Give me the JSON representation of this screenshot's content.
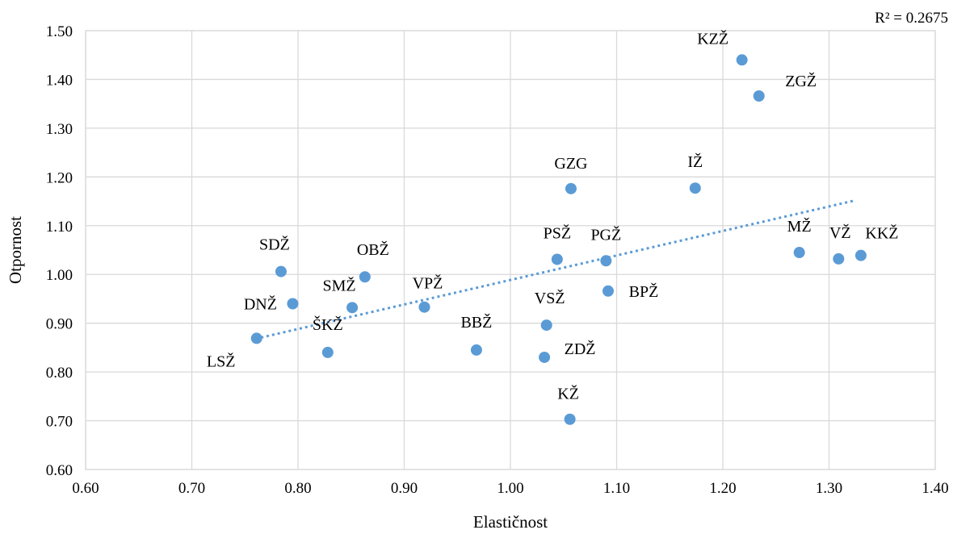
{
  "chart_data": {
    "type": "scatter",
    "xlabel": "Elastičnost",
    "ylabel": "Otpornost",
    "xlim": [
      0.6,
      1.4
    ],
    "ylim": [
      0.6,
      1.5
    ],
    "x_ticks": [
      "0.60",
      "0.70",
      "0.80",
      "0.90",
      "1.00",
      "1.10",
      "1.20",
      "1.30",
      "1.40"
    ],
    "y_ticks": [
      "0.60",
      "0.70",
      "0.80",
      "0.90",
      "1.00",
      "1.10",
      "1.20",
      "1.30",
      "1.40",
      "1.50"
    ],
    "grid": true,
    "marker_color": "#5b9bd5",
    "trendline": {
      "type": "linear",
      "r_squared_label": "R² = 0.2675",
      "from": [
        0.76,
        0.868
      ],
      "to": [
        1.325,
        1.152
      ]
    },
    "points": [
      {
        "label": "KZŽ",
        "x": 1.218,
        "y": 1.44
      },
      {
        "label": "ZGŽ",
        "x": 1.234,
        "y": 1.366
      },
      {
        "label": "GZG",
        "x": 1.057,
        "y": 1.176
      },
      {
        "label": "IŽ",
        "x": 1.174,
        "y": 1.177
      },
      {
        "label": "MŽ",
        "x": 1.272,
        "y": 1.045
      },
      {
        "label": "VŽ",
        "x": 1.309,
        "y": 1.032
      },
      {
        "label": "KKŽ",
        "x": 1.33,
        "y": 1.039
      },
      {
        "label": "PSŽ",
        "x": 1.044,
        "y": 1.031
      },
      {
        "label": "PGŽ",
        "x": 1.09,
        "y": 1.028
      },
      {
        "label": "BPŽ",
        "x": 1.092,
        "y": 0.966
      },
      {
        "label": "SDŽ",
        "x": 0.784,
        "y": 1.006
      },
      {
        "label": "OBŽ",
        "x": 0.863,
        "y": 0.995
      },
      {
        "label": "DNŽ",
        "x": 0.795,
        "y": 0.94
      },
      {
        "label": "SMŽ",
        "x": 0.851,
        "y": 0.932
      },
      {
        "label": "VPŽ",
        "x": 0.919,
        "y": 0.933
      },
      {
        "label": "VSŽ",
        "x": 1.034,
        "y": 0.896
      },
      {
        "label": "ŠKŽ",
        "x": 0.828,
        "y": 0.84
      },
      {
        "label": "BBŽ",
        "x": 0.968,
        "y": 0.845
      },
      {
        "label": "ZDŽ",
        "x": 1.032,
        "y": 0.83
      },
      {
        "label": "LSŽ",
        "x": 0.761,
        "y": 0.869
      },
      {
        "label": "KŽ",
        "x": 1.056,
        "y": 0.703
      }
    ]
  }
}
